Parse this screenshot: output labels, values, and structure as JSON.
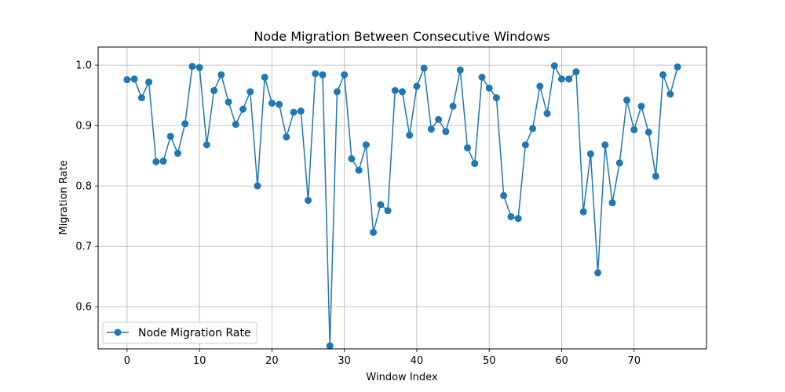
{
  "chart_data": {
    "type": "line",
    "title": "Node Migration Between Consecutive Windows",
    "xlabel": "Window Index",
    "ylabel": "Migration Rate",
    "xlim": [
      -4,
      80
    ],
    "ylim": [
      0.53,
      1.03
    ],
    "xticks": [
      0,
      10,
      20,
      30,
      40,
      50,
      60,
      70
    ],
    "yticks": [
      0.6,
      0.7,
      0.8,
      0.9,
      1.0
    ],
    "ytick_labels": [
      "0.6",
      "0.7",
      "0.8",
      "0.9",
      "1.0"
    ],
    "grid": true,
    "legend_position": "lower-left",
    "color": "#1f77b4",
    "series": [
      {
        "name": "Node Migration Rate",
        "x": [
          0,
          1,
          2,
          3,
          4,
          5,
          6,
          7,
          8,
          9,
          10,
          11,
          12,
          13,
          14,
          15,
          16,
          17,
          18,
          19,
          20,
          21,
          22,
          23,
          24,
          25,
          26,
          27,
          28,
          29,
          30,
          31,
          32,
          33,
          34,
          35,
          36,
          37,
          38,
          39,
          40,
          41,
          42,
          43,
          44,
          45,
          46,
          47,
          48,
          49,
          50,
          51,
          52,
          53,
          54,
          55,
          56,
          57,
          58,
          59,
          60,
          61,
          62,
          63,
          64,
          65,
          66,
          67,
          68,
          69,
          70,
          71,
          72,
          73,
          74,
          75,
          76
        ],
        "values": [
          0.976,
          0.977,
          0.946,
          0.972,
          0.84,
          0.841,
          0.882,
          0.854,
          0.903,
          0.998,
          0.996,
          0.868,
          0.958,
          0.984,
          0.939,
          0.902,
          0.927,
          0.956,
          0.8,
          0.98,
          0.937,
          0.935,
          0.881,
          0.922,
          0.924,
          0.776,
          0.986,
          0.984,
          0.535,
          0.956,
          0.984,
          0.845,
          0.826,
          0.868,
          0.723,
          0.769,
          0.759,
          0.958,
          0.956,
          0.884,
          0.965,
          0.995,
          0.894,
          0.91,
          0.89,
          0.932,
          0.992,
          0.863,
          0.837,
          0.98,
          0.962,
          0.946,
          0.784,
          0.749,
          0.746,
          0.868,
          0.895,
          0.965,
          0.92,
          0.999,
          0.977,
          0.977,
          0.989,
          0.757,
          0.853,
          0.656,
          0.868,
          0.772,
          0.838,
          0.942,
          0.893,
          0.932,
          0.889,
          0.816,
          0.984,
          0.952,
          0.997
        ]
      }
    ]
  }
}
